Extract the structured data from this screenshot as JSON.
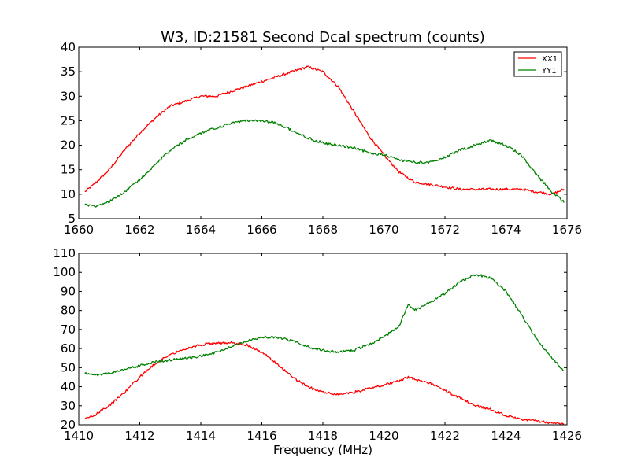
{
  "chart_data": [
    {
      "type": "line",
      "title": "W3, ID:21581 Second Dcal spectrum (counts)",
      "xlabel": "",
      "ylabel": "",
      "xlim": [
        1660,
        1676
      ],
      "ylim": [
        5,
        40
      ],
      "xticks": [
        "1660",
        "1662",
        "1664",
        "1666",
        "1668",
        "1670",
        "1672",
        "1674",
        "1676"
      ],
      "yticks": [
        "5",
        "10",
        "15",
        "20",
        "25",
        "30",
        "35",
        "40"
      ],
      "grid": false,
      "legend": "top-right",
      "series": [
        {
          "name": "XX1",
          "color": "#ff0000",
          "x": [
            1660.2,
            1660.5,
            1661.0,
            1661.5,
            1662.0,
            1662.5,
            1663.0,
            1663.5,
            1664.0,
            1664.5,
            1665.0,
            1665.5,
            1666.0,
            1666.5,
            1667.0,
            1667.5,
            1668.0,
            1668.5,
            1669.0,
            1669.5,
            1670.0,
            1670.5,
            1671.0,
            1671.5,
            1672.0,
            1672.5,
            1673.0,
            1673.5,
            1674.0,
            1674.5,
            1675.0,
            1675.5,
            1675.9
          ],
          "y": [
            10.5,
            12,
            15,
            19,
            22.5,
            25.5,
            28,
            29,
            30,
            30,
            31,
            32,
            33,
            34,
            35,
            36,
            35,
            32,
            27,
            22,
            18,
            14.5,
            12.5,
            12,
            11.5,
            11,
            11,
            11,
            11,
            11,
            10.5,
            10,
            11
          ]
        },
        {
          "name": "YY1",
          "color": "#008000",
          "x": [
            1660.2,
            1660.5,
            1661.0,
            1661.5,
            1662.0,
            1662.5,
            1663.0,
            1663.5,
            1664.0,
            1664.5,
            1665.0,
            1665.5,
            1666.0,
            1666.5,
            1667.0,
            1667.5,
            1668.0,
            1668.5,
            1669.0,
            1669.5,
            1670.0,
            1670.5,
            1671.0,
            1671.5,
            1672.0,
            1672.5,
            1673.0,
            1673.5,
            1674.0,
            1674.5,
            1675.0,
            1675.5,
            1675.9
          ],
          "y": [
            8,
            7.5,
            8.5,
            10.5,
            13,
            16,
            19,
            21,
            22.5,
            23.5,
            24.5,
            25,
            25,
            24.5,
            23,
            21.5,
            20.5,
            20,
            19.5,
            18.5,
            18,
            17,
            16.5,
            16.5,
            17.5,
            19,
            20,
            21,
            20,
            18,
            14,
            10.5,
            8.5
          ]
        }
      ]
    },
    {
      "type": "line",
      "title": "",
      "xlabel": "Frequency (MHz)",
      "ylabel": "",
      "xlim": [
        1410,
        1426
      ],
      "ylim": [
        20,
        110
      ],
      "xticks": [
        "1410",
        "1412",
        "1414",
        "1416",
        "1418",
        "1420",
        "1422",
        "1424",
        "1426"
      ],
      "yticks": [
        "20",
        "30",
        "40",
        "50",
        "60",
        "70",
        "80",
        "90",
        "100",
        "110"
      ],
      "grid": false,
      "series": [
        {
          "color": "#ff0000",
          "x": [
            1410.2,
            1410.5,
            1411.0,
            1411.5,
            1412.0,
            1412.5,
            1413.0,
            1413.5,
            1414.0,
            1414.5,
            1415.0,
            1415.5,
            1416.0,
            1416.5,
            1417.0,
            1417.5,
            1418.0,
            1418.5,
            1419.0,
            1419.5,
            1420.0,
            1420.5,
            1420.8,
            1421.0,
            1421.5,
            1422.0,
            1422.5,
            1423.0,
            1423.5,
            1424.0,
            1424.5,
            1425.0,
            1425.5,
            1425.9
          ],
          "y": [
            23,
            25,
            30,
            37,
            45,
            52,
            57,
            60,
            62,
            63,
            63,
            62,
            58,
            52,
            45,
            40,
            37,
            36,
            37,
            39,
            41,
            43,
            45,
            44,
            42,
            38,
            34,
            30,
            28,
            25,
            23,
            22,
            21,
            21
          ]
        },
        {
          "color": "#008000",
          "x": [
            1410.2,
            1410.5,
            1411.0,
            1411.5,
            1412.0,
            1412.5,
            1413.0,
            1413.5,
            1414.0,
            1414.5,
            1415.0,
            1415.5,
            1416.0,
            1416.5,
            1417.0,
            1417.5,
            1418.0,
            1418.5,
            1419.0,
            1419.5,
            1420.0,
            1420.5,
            1420.8,
            1421.0,
            1421.5,
            1422.0,
            1422.5,
            1423.0,
            1423.5,
            1424.0,
            1424.5,
            1425.0,
            1425.5,
            1425.9
          ],
          "y": [
            47,
            46,
            47,
            49,
            51,
            53,
            54,
            55,
            56,
            58,
            61,
            64,
            66,
            66,
            64,
            61,
            59,
            58,
            59,
            62,
            66,
            72,
            83,
            80,
            84,
            89,
            95,
            99,
            97,
            90,
            78,
            65,
            55,
            48
          ]
        }
      ]
    }
  ]
}
